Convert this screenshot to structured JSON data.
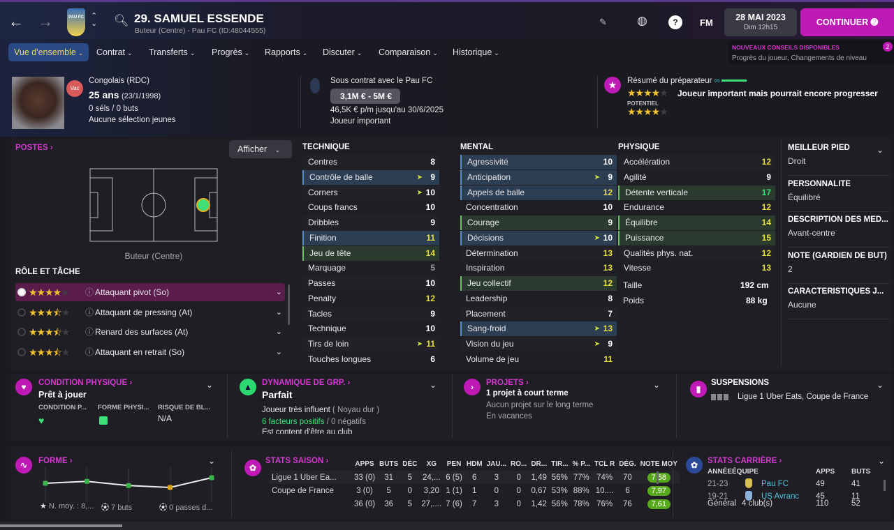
{
  "header": {
    "title": "29. SAMUEL ESSENDE",
    "subtitle": "Buteur (Centre) - Pau FC (ID:48044555)",
    "club_badge": "PAU FC",
    "date": "28 MAI 2023",
    "time": "Dim 12h15",
    "continue_label": "CONTINUER",
    "fm_label": "FM",
    "icons": [
      "back-arrow",
      "forward-arrow",
      "up-down-chevron",
      "search",
      "pencil",
      "globe",
      "help",
      "continue-arrow"
    ]
  },
  "tips": {
    "title": "NOUVEAUX CONSEILS DISPONIBLES",
    "text": "Progrès du joueur, Changements de niveau",
    "count": "2"
  },
  "tabs": [
    "Vue d'ensemble",
    "Contrat",
    "Transferts",
    "Progrès",
    "Rapports",
    "Discuter",
    "Comparaison",
    "Historique"
  ],
  "player": {
    "status_badge": "Vac",
    "nationality": "Congolais (RDC)",
    "age": "25 ans",
    "dob": "(23/1/1998)",
    "caps": "0 séls / 0 buts",
    "youth": "Aucune sélection jeunes"
  },
  "contract": {
    "title": "Sous contrat avec le Pau FC",
    "value": "3,1M € - 5M €",
    "wage": "46,5K € p/m jusqu'au 30/6/2025",
    "status": "Joueur important"
  },
  "scout": {
    "title": "Résumé du préparateur",
    "ability_stars": 4,
    "summary": "Joueur important mais pourrait encore progresser",
    "potential_label": "POTENTIEL",
    "potential_stars": 4
  },
  "positions": {
    "title": "POSTES",
    "show_label": "Afficher",
    "position": "Buteur (Centre)",
    "roles_title": "RÔLE ET TÂCHE",
    "roles": [
      {
        "name": "Attaquant pivot (So)",
        "stars": 4,
        "selected": true
      },
      {
        "name": "Attaquant de pressing (At)",
        "stars": 3.5
      },
      {
        "name": "Renard des surfaces (At)",
        "stars": 3.5
      },
      {
        "name": "Attaquant en retrait (So)",
        "stars": 3.5
      }
    ]
  },
  "attributes": {
    "technique": {
      "title": "TECHNIQUE",
      "items": [
        {
          "n": "Centres",
          "v": 8
        },
        {
          "n": "Contrôle de balle",
          "v": 9,
          "hl": "blue",
          "arrow": true
        },
        {
          "n": "Corners",
          "v": 10,
          "arrow": true
        },
        {
          "n": "Coups francs",
          "v": 10
        },
        {
          "n": "Dribbles",
          "v": 9
        },
        {
          "n": "Finition",
          "v": 11,
          "hl": "blue"
        },
        {
          "n": "Jeu de tête",
          "v": 14,
          "hl": "green"
        },
        {
          "n": "Marquage",
          "v": 5
        },
        {
          "n": "Passes",
          "v": 10
        },
        {
          "n": "Penalty",
          "v": 12
        },
        {
          "n": "Tacles",
          "v": 9
        },
        {
          "n": "Technique",
          "v": 10
        },
        {
          "n": "Tirs de loin",
          "v": 11,
          "arrow": true
        },
        {
          "n": "Touches longues",
          "v": 6
        }
      ]
    },
    "mental": {
      "title": "MENTAL",
      "items": [
        {
          "n": "Agressivité",
          "v": 10,
          "hl": "blue"
        },
        {
          "n": "Anticipation",
          "v": 9,
          "hl": "blue",
          "arrow": true
        },
        {
          "n": "Appels de balle",
          "v": 12,
          "hl": "blue"
        },
        {
          "n": "Concentration",
          "v": 10
        },
        {
          "n": "Courage",
          "v": 9,
          "hl": "green"
        },
        {
          "n": "Décisions",
          "v": 10,
          "hl": "blue",
          "arrow": true
        },
        {
          "n": "Détermination",
          "v": 13
        },
        {
          "n": "Inspiration",
          "v": 13
        },
        {
          "n": "Jeu collectif",
          "v": 12,
          "hl": "green"
        },
        {
          "n": "Leadership",
          "v": 8
        },
        {
          "n": "Placement",
          "v": 7
        },
        {
          "n": "Sang-froid",
          "v": 13,
          "hl": "blue",
          "arrow": true
        },
        {
          "n": "Vision du jeu",
          "v": 9,
          "arrow": true
        },
        {
          "n": "Volume de jeu",
          "v": 11
        }
      ]
    },
    "physique": {
      "title": "PHYSIQUE",
      "items": [
        {
          "n": "Accélération",
          "v": 12
        },
        {
          "n": "Agilité",
          "v": 9
        },
        {
          "n": "Détente verticale",
          "v": 17,
          "hl": "green"
        },
        {
          "n": "Endurance",
          "v": 12
        },
        {
          "n": "Équilibre",
          "v": 14,
          "hl": "green"
        },
        {
          "n": "Puissance",
          "v": 15,
          "hl": "green"
        },
        {
          "n": "Qualités phys. nat.",
          "v": 12
        },
        {
          "n": "Vitesse",
          "v": 13
        }
      ],
      "height_label": "Taille",
      "height": "192 cm",
      "weight_label": "Poids",
      "weight": "88 kg"
    }
  },
  "details": [
    {
      "h": "MEILLEUR PIED",
      "b": "Droit"
    },
    {
      "h": "PERSONNALITÉ",
      "b": "Équilibré"
    },
    {
      "h": "DESCRIPTION DES MÉD...",
      "b": "Avant-centre"
    },
    {
      "h": "NOTE (GARDIEN DE BUT)",
      "b": "2"
    },
    {
      "h": "CARACTÉRISTIQUES J...",
      "b": "Aucune"
    }
  ],
  "condition": {
    "title": "CONDITION PHYSIQUE",
    "status": "Prêt à jouer",
    "cols": [
      "CONDITION P...",
      "FORME PHYSI...",
      "RISQUE DE BL..."
    ],
    "risk": "N/A"
  },
  "dynamics": {
    "title": "DYNAMIQUE DE GRP.",
    "status": "Parfait",
    "influence": "Joueur très influent",
    "group": "( Noyau dur )",
    "positive": "6 facteurs positifs",
    "negative": "/ 0 négatifs",
    "line3": "Est content d'être au club"
  },
  "projects": {
    "title": "PROJETS",
    "line1": "1 projet à court terme",
    "line2": "Aucun projet sur le long terme",
    "line3": "En vacances"
  },
  "suspensions": {
    "title": "SUSPENSIONS",
    "text": "Ligue 1 Uber Eats, Coupe de France"
  },
  "form": {
    "title": "FORME",
    "ratings_rel": [
      0.55,
      0.62,
      0.47,
      0.4,
      0.75
    ],
    "point_colors": [
      "#3cb44a",
      "#3cb44a",
      "#3cb44a",
      "#d6a21e",
      "#3cb44a"
    ],
    "avg": "N. moy. : 8,...",
    "goals": "7 buts",
    "assists": "0 passes d..."
  },
  "season": {
    "title": "STATS SAISON",
    "cols": [
      "APPS",
      "BUTS",
      "DÉC",
      "XG",
      "PEN",
      "HDM",
      "JAU...",
      "RO...",
      "DR...",
      "TIR...",
      "% P...",
      "TCL R",
      "DÉG.",
      "NOTE MOY"
    ],
    "rows": [
      [
        "Ligue 1 Uber Ea...",
        "33 (0)",
        "31",
        "5",
        "24,...",
        "6 (5)",
        "6",
        "3",
        "0",
        "1,49",
        "56%",
        "77%",
        "74%",
        "70",
        "7,58"
      ],
      [
        "Coupe de France",
        "3 (0)",
        "5",
        "0",
        "3,20",
        "1 (1)",
        "1",
        "0",
        "0",
        "0,67",
        "53%",
        "88%",
        "10....",
        "6",
        "7,97"
      ],
      [
        "",
        "36 (0)",
        "36",
        "5",
        "27,....",
        "7 (6)",
        "7",
        "3",
        "0",
        "1,42",
        "56%",
        "78%",
        "76%",
        "76",
        "7,61"
      ]
    ]
  },
  "career": {
    "title": "STATS CARRIÈRE",
    "cols": [
      "ANNÉE",
      "ÉQUIPE",
      "APPS",
      "BUTS"
    ],
    "rows": [
      [
        "21-23",
        "Pau FC",
        "49",
        "41"
      ],
      [
        "19-21",
        "US Avranc",
        "45",
        "11"
      ]
    ],
    "total": [
      "Général",
      "4 club(s)",
      "110",
      "52"
    ]
  }
}
